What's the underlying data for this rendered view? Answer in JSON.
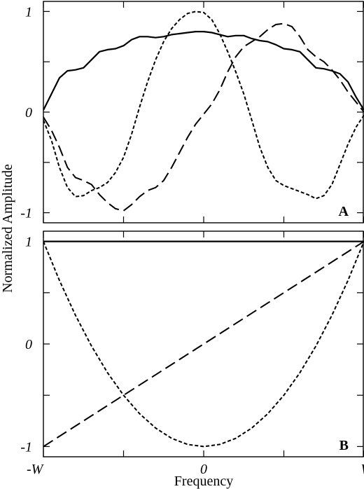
{
  "chart_data": [
    {
      "type": "line",
      "panel_label": "A",
      "xlabel": "Frequency",
      "ylabel": "Normalized Amplitude",
      "xlim": [
        -1,
        1
      ],
      "ylim": [
        -1.1,
        1.1
      ],
      "x_ticks": [
        -1,
        -0.5,
        0,
        0.5,
        1
      ],
      "x_tick_labels": [
        "",
        "",
        "",
        "",
        ""
      ],
      "y_ticks": [
        1,
        0.5,
        0,
        -0.5,
        -1
      ],
      "y_tick_labels": [
        "1",
        "",
        "0",
        "",
        "-1"
      ],
      "grid": false,
      "series": [
        {
          "style": "solid",
          "x": [
            -1,
            -0.95,
            -0.9,
            -0.85,
            -0.8,
            -0.75,
            -0.7,
            -0.65,
            -0.6,
            -0.55,
            -0.5,
            -0.45,
            -0.4,
            -0.35,
            -0.3,
            -0.25,
            -0.2,
            -0.15,
            -0.1,
            -0.05,
            0,
            0.05,
            0.1,
            0.15,
            0.2,
            0.25,
            0.3,
            0.35,
            0.4,
            0.45,
            0.5,
            0.55,
            0.6,
            0.65,
            0.7,
            0.75,
            0.8,
            0.85,
            0.9,
            0.95,
            1
          ],
          "y": [
            0.02,
            0.18,
            0.34,
            0.41,
            0.42,
            0.44,
            0.52,
            0.6,
            0.62,
            0.63,
            0.66,
            0.72,
            0.75,
            0.75,
            0.74,
            0.75,
            0.77,
            0.78,
            0.79,
            0.8,
            0.8,
            0.79,
            0.77,
            0.75,
            0.76,
            0.76,
            0.73,
            0.71,
            0.7,
            0.67,
            0.63,
            0.62,
            0.6,
            0.52,
            0.44,
            0.43,
            0.41,
            0.38,
            0.3,
            0.15,
            0.02
          ]
        },
        {
          "style": "dotted",
          "x": [
            -1,
            -0.95,
            -0.9,
            -0.85,
            -0.8,
            -0.75,
            -0.7,
            -0.65,
            -0.6,
            -0.55,
            -0.5,
            -0.45,
            -0.4,
            -0.35,
            -0.3,
            -0.25,
            -0.2,
            -0.15,
            -0.1,
            -0.05,
            0,
            0.05,
            0.1,
            0.15,
            0.2,
            0.25,
            0.3,
            0.35,
            0.4,
            0.45,
            0.5,
            0.55,
            0.6,
            0.65,
            0.7,
            0.75,
            0.8,
            0.85,
            0.9,
            0.95,
            1
          ],
          "y": [
            -0.08,
            -0.28,
            -0.55,
            -0.75,
            -0.84,
            -0.83,
            -0.78,
            -0.75,
            -0.7,
            -0.6,
            -0.45,
            -0.22,
            0.05,
            0.3,
            0.52,
            0.7,
            0.83,
            0.92,
            0.98,
            1.0,
            0.99,
            0.92,
            0.78,
            0.6,
            0.4,
            0.18,
            -0.08,
            -0.35,
            -0.55,
            -0.68,
            -0.73,
            -0.76,
            -0.79,
            -0.82,
            -0.86,
            -0.83,
            -0.72,
            -0.52,
            -0.32,
            -0.15,
            -0.03
          ]
        },
        {
          "style": "dashed",
          "x": [
            -1,
            -0.95,
            -0.9,
            -0.85,
            -0.8,
            -0.75,
            -0.7,
            -0.65,
            -0.6,
            -0.55,
            -0.5,
            -0.45,
            -0.4,
            -0.35,
            -0.3,
            -0.25,
            -0.2,
            -0.15,
            -0.1,
            -0.05,
            0,
            0.05,
            0.1,
            0.15,
            0.2,
            0.25,
            0.3,
            0.35,
            0.4,
            0.45,
            0.5,
            0.55,
            0.6,
            0.65,
            0.7,
            0.75,
            0.8,
            0.85,
            0.9,
            0.95,
            1
          ],
          "y": [
            -0.05,
            -0.18,
            -0.35,
            -0.55,
            -0.65,
            -0.68,
            -0.72,
            -0.82,
            -0.9,
            -0.96,
            -0.98,
            -0.92,
            -0.84,
            -0.78,
            -0.75,
            -0.68,
            -0.55,
            -0.4,
            -0.25,
            -0.12,
            -0.02,
            0.08,
            0.22,
            0.4,
            0.55,
            0.65,
            0.7,
            0.75,
            0.82,
            0.87,
            0.88,
            0.85,
            0.75,
            0.62,
            0.55,
            0.5,
            0.42,
            0.32,
            0.2,
            0.1,
            0.0
          ]
        }
      ]
    },
    {
      "type": "line",
      "panel_label": "B",
      "xlabel": "Frequency",
      "ylabel": "Normalized Amplitude",
      "xlim": [
        -1,
        1
      ],
      "ylim": [
        -1.1,
        1.1
      ],
      "x_ticks": [
        -1,
        -0.5,
        0,
        0.5,
        1
      ],
      "x_tick_labels": [
        "-W",
        "",
        "0",
        "",
        "W"
      ],
      "y_ticks": [
        1,
        0.5,
        0,
        -0.5,
        -1
      ],
      "y_tick_labels": [
        "1",
        "",
        "0",
        "",
        "-1"
      ],
      "grid": false,
      "series": [
        {
          "style": "solid",
          "x": [
            -1,
            1
          ],
          "y": [
            1,
            1
          ]
        },
        {
          "style": "dotted",
          "x": [
            -1,
            -0.9,
            -0.8,
            -0.7,
            -0.6,
            -0.5,
            -0.4,
            -0.3,
            -0.2,
            -0.1,
            0,
            0.1,
            0.2,
            0.3,
            0.4,
            0.5,
            0.6,
            0.7,
            0.8,
            0.9,
            1
          ],
          "y": [
            1,
            0.62,
            0.28,
            -0.02,
            -0.28,
            -0.5,
            -0.68,
            -0.82,
            -0.92,
            -0.98,
            -1,
            -0.98,
            -0.92,
            -0.82,
            -0.68,
            -0.5,
            -0.28,
            -0.02,
            0.28,
            0.62,
            1
          ]
        },
        {
          "style": "dashed",
          "x": [
            -1,
            1
          ],
          "y": [
            -1,
            1
          ]
        }
      ]
    }
  ]
}
